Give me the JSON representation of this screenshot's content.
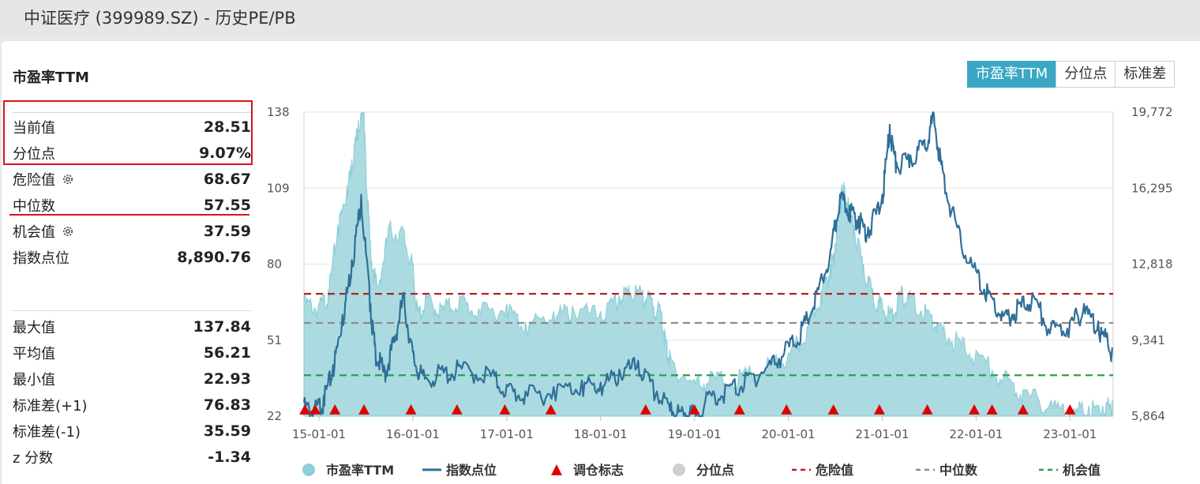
{
  "page_title": "中证医疗 (399989.SZ) - 历史PE/PB",
  "section_title": "市盈率TTM",
  "tabs": [
    {
      "label": "市盈率TTM",
      "active": true
    },
    {
      "label": "分位点",
      "active": false
    },
    {
      "label": "标准差",
      "active": false
    }
  ],
  "stats": {
    "current": {
      "label": "当前值",
      "value": "28.51"
    },
    "percentile": {
      "label": "分位点",
      "value": "9.07%"
    },
    "danger": {
      "label": "危险值",
      "value": "68.67",
      "icon": "gear-icon"
    },
    "median": {
      "label": "中位数",
      "value": "57.55"
    },
    "opportunity": {
      "label": "机会值",
      "value": "37.59",
      "icon": "gear-icon"
    },
    "index_points": {
      "label": "指数点位",
      "value": "8,890.76"
    },
    "max": {
      "label": "最大值",
      "value": "137.84"
    },
    "mean": {
      "label": "平均值",
      "value": "56.21"
    },
    "min": {
      "label": "最小值",
      "value": "22.93"
    },
    "std_plus": {
      "label": "标准差(+1)",
      "value": "76.83"
    },
    "std_minus": {
      "label": "标准差(-1)",
      "value": "35.59"
    },
    "zscore": {
      "label": "z 分数",
      "value": "-1.34"
    }
  },
  "colors": {
    "pe_area": "#a7d9df",
    "pe_line": "#8fcfd7",
    "index_line": "#2f6f98",
    "danger": "#b22222",
    "median": "#8c8c8c",
    "opportunity": "#2e9e4a",
    "marker": "#e00000",
    "active_tab": "#3aa7c4",
    "highlight": "#d7141a"
  },
  "chart_data": {
    "type": "area",
    "left_axis": {
      "ylim": [
        22,
        138
      ],
      "ticks": [
        22,
        51,
        80,
        109,
        138
      ]
    },
    "right_axis": {
      "ylim": [
        5864,
        19772
      ],
      "ticks": [
        "5,864",
        "9,341",
        "12,818",
        "16,295",
        "19,772"
      ]
    },
    "x_ticks": [
      "15-01-01",
      "16-01-01",
      "17-01-01",
      "18-01-01",
      "19-01-01",
      "20-01-01",
      "21-01-01",
      "22-01-01",
      "23-01-01"
    ],
    "x_range": [
      2014.84,
      2023.46
    ],
    "pe_series": {
      "name": "市盈率TTM",
      "x": [
        2014.84,
        2015.0,
        2015.1,
        2015.2,
        2015.3,
        2015.35,
        2015.42,
        2015.48,
        2015.5,
        2015.55,
        2015.62,
        2015.75,
        2015.9,
        2016.0,
        2016.05,
        2016.15,
        2016.3,
        2016.5,
        2016.7,
        2017.0,
        2017.2,
        2017.5,
        2017.7,
        2018.0,
        2018.2,
        2018.3,
        2018.45,
        2018.55,
        2018.65,
        2018.7,
        2018.75,
        2019.0,
        2019.2,
        2019.5,
        2019.8,
        2020.0,
        2020.2,
        2020.35,
        2020.45,
        2020.5,
        2020.55,
        2020.6,
        2020.7,
        2020.8,
        2020.9,
        2021.0,
        2021.1,
        2021.2,
        2021.3,
        2021.5,
        2021.6,
        2021.8,
        2022.0,
        2022.3,
        2022.5,
        2022.8,
        2023.0,
        2023.2,
        2023.35,
        2023.45
      ],
      "values": [
        67,
        65,
        70,
        95,
        110,
        120,
        135,
        138,
        118,
        86,
        72,
        95,
        93,
        80,
        62,
        68,
        64,
        68,
        63,
        65,
        58,
        62,
        64,
        62,
        68,
        72,
        70,
        67,
        62,
        50,
        44,
        36,
        38,
        38,
        43,
        46,
        56,
        70,
        80,
        88,
        107,
        110,
        95,
        80,
        70,
        65,
        62,
        70,
        68,
        62,
        57,
        52,
        47,
        38,
        32,
        28,
        25,
        26,
        26,
        28
      ]
    },
    "index_series": {
      "name": "指数点位",
      "x": [
        2014.84,
        2014.95,
        2015.05,
        2015.15,
        2015.25,
        2015.35,
        2015.45,
        2015.55,
        2015.6,
        2015.7,
        2015.8,
        2015.9,
        2016.0,
        2016.1,
        2016.3,
        2016.5,
        2016.8,
        2017.0,
        2017.2,
        2017.5,
        2017.8,
        2018.0,
        2018.2,
        2018.4,
        2018.6,
        2018.75,
        2018.9,
        2019.0,
        2019.2,
        2019.4,
        2019.6,
        2019.8,
        2020.0,
        2020.15,
        2020.3,
        2020.45,
        2020.55,
        2020.65,
        2020.75,
        2020.85,
        2021.0,
        2021.08,
        2021.15,
        2021.3,
        2021.45,
        2021.55,
        2021.65,
        2021.8,
        2022.0,
        2022.15,
        2022.3,
        2022.45,
        2022.6,
        2022.8,
        2023.0,
        2023.15,
        2023.3,
        2023.45
      ],
      "values": [
        6500,
        6300,
        6800,
        8200,
        10500,
        13000,
        16000,
        11000,
        9000,
        8000,
        9500,
        11500,
        8800,
        7800,
        8000,
        8200,
        8000,
        7300,
        7000,
        7200,
        7500,
        7400,
        8000,
        8400,
        7000,
        6500,
        6000,
        6200,
        7000,
        7300,
        7800,
        8400,
        9200,
        10000,
        11500,
        13500,
        16000,
        15500,
        15000,
        14500,
        16000,
        19200,
        17500,
        17800,
        18500,
        19700,
        17000,
        14500,
        12500,
        11500,
        10500,
        11000,
        11500,
        10000,
        10200,
        11000,
        10200,
        9000
      ]
    },
    "reference_lines": [
      {
        "name": "危险值",
        "value": 68.67
      },
      {
        "name": "中位数",
        "value": 57.55
      },
      {
        "name": "机会值",
        "value": 37.59
      }
    ],
    "rebalance_markers": {
      "name": "调仓标志",
      "x": [
        2014.85,
        2014.96,
        2015.17,
        2015.48,
        2015.98,
        2016.47,
        2016.98,
        2017.47,
        2018.48,
        2019.0,
        2019.48,
        2019.98,
        2020.48,
        2020.97,
        2021.48,
        2021.98,
        2022.17,
        2022.5,
        2023.0
      ]
    },
    "legend": {
      "position": "bottom",
      "items": [
        {
          "label": "市盈率TTM",
          "type": "dot",
          "color": "#8fcfd7",
          "enabled": true
        },
        {
          "label": "指数点位",
          "type": "line",
          "color": "#2f6f98",
          "enabled": true
        },
        {
          "label": "调仓标志",
          "type": "triangle",
          "color": "#e00000",
          "enabled": true
        },
        {
          "label": "分位点",
          "type": "dot",
          "color": "#cfcfcf",
          "enabled": false
        },
        {
          "label": "危险值",
          "type": "dash",
          "color": "#b22222",
          "enabled": true
        },
        {
          "label": "中位数",
          "type": "dash",
          "color": "#8c8c8c",
          "enabled": true
        },
        {
          "label": "机会值",
          "type": "dash",
          "color": "#2e9e4a",
          "enabled": true
        }
      ]
    }
  }
}
